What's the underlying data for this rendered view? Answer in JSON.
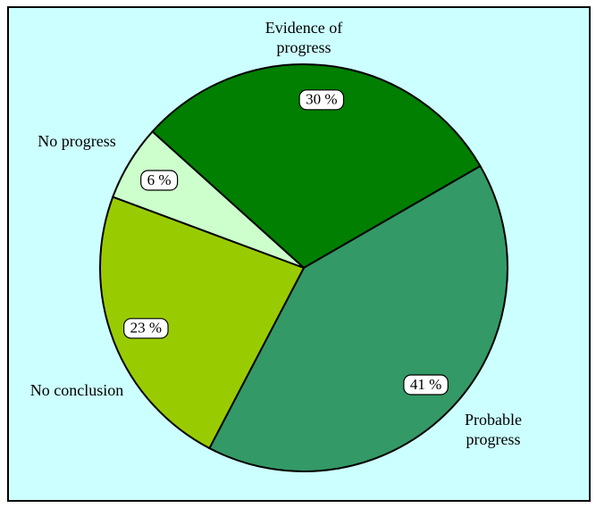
{
  "chart_data": {
    "type": "pie",
    "categories": [
      "Evidence of progress",
      "Probable progress",
      "No conclusion",
      "No progress"
    ],
    "values": [
      30,
      41,
      23,
      6
    ],
    "value_labels": [
      "30 %",
      "41 %",
      "23 %",
      "6 %"
    ],
    "colors": [
      "#007f00",
      "#339966",
      "#99cc00",
      "#ccffcc"
    ]
  }
}
